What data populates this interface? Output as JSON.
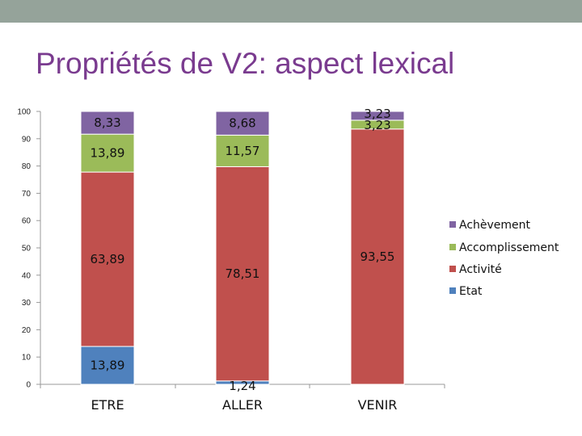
{
  "slide": {
    "title": "Propriétés de V2: aspect lexical",
    "topbar_color": "#95a39a",
    "title_color": "#7a3b8f"
  },
  "chart_data": {
    "type": "bar",
    "stacked": true,
    "categories": [
      "ETRE",
      "ALLER",
      "VENIR"
    ],
    "series": [
      {
        "name": "Etat",
        "color": "#4f81bd",
        "values": [
          13.89,
          1.24,
          0
        ],
        "labels": [
          "13,89",
          "1,24",
          ""
        ]
      },
      {
        "name": "Activité",
        "color": "#c0504d",
        "values": [
          63.89,
          78.51,
          93.55
        ],
        "labels": [
          "63,89",
          "78,51",
          "93,55"
        ]
      },
      {
        "name": "Accomplissement",
        "color": "#9bbb59",
        "values": [
          13.89,
          11.57,
          3.23
        ],
        "labels": [
          "13,89",
          "11,57",
          "3,23"
        ]
      },
      {
        "name": "Achèvement",
        "color": "#8064a2",
        "values": [
          8.33,
          8.68,
          3.23
        ],
        "labels": [
          "8,33",
          "8,68",
          "3,23"
        ]
      }
    ],
    "y_ticks": [
      "0",
      "10",
      "20",
      "30",
      "40",
      "50",
      "60",
      "70",
      "80",
      "90",
      "100"
    ],
    "ylim": [
      0,
      100
    ],
    "grid": false,
    "legend": {
      "position": "right",
      "order": [
        "Achèvement",
        "Accomplissement",
        "Activité",
        "Etat"
      ]
    }
  }
}
